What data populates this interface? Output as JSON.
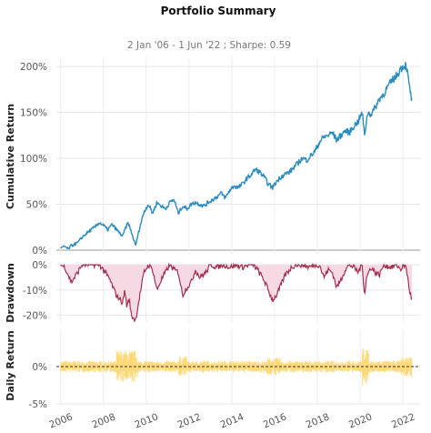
{
  "chart_data": [
    {
      "type": "line",
      "title": "Portfolio Summary",
      "subtitle": "2 Jan '06 -  1 Jun '22 ;  Sharpe: 0.59",
      "ylabel": "Cumulative Return",
      "yticks": [
        "0%",
        "50%",
        "100%",
        "150%",
        "200%"
      ],
      "ylim": [
        -5,
        210
      ],
      "grid": true,
      "color": "#2b8cbe",
      "series": [
        {
          "x": [
            2006.0,
            2006.2,
            2006.35,
            2006.5,
            2006.8,
            2007.0,
            2007.3,
            2007.6,
            2007.8,
            2008.0,
            2008.2,
            2008.4,
            2008.7,
            2008.9,
            2009.0,
            2009.15,
            2009.3,
            2009.5,
            2009.7,
            2009.9,
            2010.1,
            2010.3,
            2010.5,
            2010.7,
            2010.9,
            2011.1,
            2011.3,
            2011.5,
            2011.7,
            2011.9,
            2012.1,
            2012.3,
            2012.5,
            2012.7,
            2012.9,
            2013.1,
            2013.3,
            2013.5,
            2013.7,
            2013.9,
            2014.1,
            2014.3,
            2014.5,
            2014.7,
            2014.9,
            2015.1,
            2015.3,
            2015.5,
            2015.7,
            2015.9,
            2016.1,
            2016.3,
            2016.5,
            2016.7,
            2016.9,
            2017.1,
            2017.3,
            2017.5,
            2017.7,
            2017.9,
            2018.1,
            2018.3,
            2018.5,
            2018.7,
            2018.9,
            2019.1,
            2019.3,
            2019.5,
            2019.7,
            2019.9,
            2020.1,
            2020.2,
            2020.35,
            2020.5,
            2020.7,
            2020.9,
            2021.1,
            2021.3,
            2021.5,
            2021.7,
            2021.9,
            2022.0,
            2022.15,
            2022.3,
            2022.42
          ],
          "y": [
            2,
            4,
            1,
            5,
            8,
            14,
            20,
            25,
            30,
            27,
            22,
            28,
            20,
            15,
            22,
            30,
            20,
            5,
            25,
            42,
            50,
            40,
            52,
            48,
            45,
            52,
            55,
            40,
            48,
            45,
            50,
            52,
            50,
            48,
            52,
            55,
            58,
            62,
            57,
            65,
            70,
            68,
            72,
            78,
            82,
            88,
            85,
            80,
            72,
            68,
            75,
            80,
            83,
            85,
            90,
            95,
            100,
            98,
            103,
            108,
            118,
            123,
            125,
            128,
            120,
            125,
            130,
            128,
            135,
            140,
            150,
            125,
            150,
            148,
            155,
            165,
            170,
            178,
            185,
            190,
            198,
            200,
            202,
            178,
            162
          ]
        }
      ]
    },
    {
      "type": "area",
      "ylabel": "Drawdown",
      "yticks": [
        "0%",
        "-10%",
        "-20%"
      ],
      "ylim": [
        -23,
        0
      ],
      "color": "#a2304f",
      "fill": "#f6d9e2",
      "series": [
        {
          "x": [
            2006.0,
            2006.2,
            2006.4,
            2006.5,
            2006.8,
            2007.0,
            2007.5,
            2007.8,
            2008.0,
            2008.3,
            2008.6,
            2008.9,
            2009.0,
            2009.1,
            2009.2,
            2009.3,
            2009.5,
            2009.7,
            2009.9,
            2010.1,
            2010.3,
            2010.5,
            2010.7,
            2010.9,
            2011.1,
            2011.3,
            2011.5,
            2011.7,
            2011.9,
            2012.1,
            2012.3,
            2012.5,
            2012.8,
            2013.0,
            2013.3,
            2013.6,
            2013.9,
            2014.2,
            2014.5,
            2014.8,
            2015.0,
            2015.2,
            2015.5,
            2015.7,
            2015.9,
            2016.1,
            2016.3,
            2016.5,
            2016.8,
            2017.0,
            2017.3,
            2017.6,
            2017.9,
            2018.1,
            2018.3,
            2018.5,
            2018.7,
            2018.9,
            2019.1,
            2019.3,
            2019.5,
            2019.7,
            2019.9,
            2020.1,
            2020.2,
            2020.3,
            2020.5,
            2020.7,
            2020.9,
            2021.1,
            2021.4,
            2021.7,
            2021.9,
            2022.0,
            2022.15,
            2022.3,
            2022.42
          ],
          "y": [
            0,
            -1,
            -5,
            -7,
            -3,
            0,
            0,
            0,
            -2,
            -6,
            -12,
            -15,
            -10,
            -17,
            -13,
            -20,
            -22,
            -12,
            -3,
            0,
            -2,
            -10,
            -6,
            -3,
            0,
            -2,
            -3,
            -12,
            -9,
            -7,
            -2,
            -5,
            -3,
            0,
            -1,
            0,
            -1,
            0,
            -1,
            0,
            0,
            -2,
            -6,
            -10,
            -14,
            -12,
            -8,
            -4,
            -1,
            0,
            0,
            -1,
            0,
            0,
            -5,
            -2,
            -3,
            -9,
            -6,
            -2,
            0,
            -1,
            -3,
            0,
            -12,
            -5,
            -1,
            -3,
            -4,
            0,
            -1,
            0,
            -2,
            0,
            -1,
            -10,
            -14
          ]
        }
      ]
    },
    {
      "type": "bar",
      "ylabel": "Daily Return",
      "yticks": [
        "0%",
        "-5%"
      ],
      "ylim": [
        -5,
        5
      ],
      "color": "#fed976",
      "note": "daily returns mostly within ±2%, volatility spikes around 2008-2009 and 2020"
    }
  ],
  "x_axis": {
    "ticks": [
      "2006",
      "2008",
      "2010",
      "2012",
      "2014",
      "2016",
      "2018",
      "2020",
      "2022"
    ],
    "range": [
      2005.8,
      2022.8
    ]
  }
}
